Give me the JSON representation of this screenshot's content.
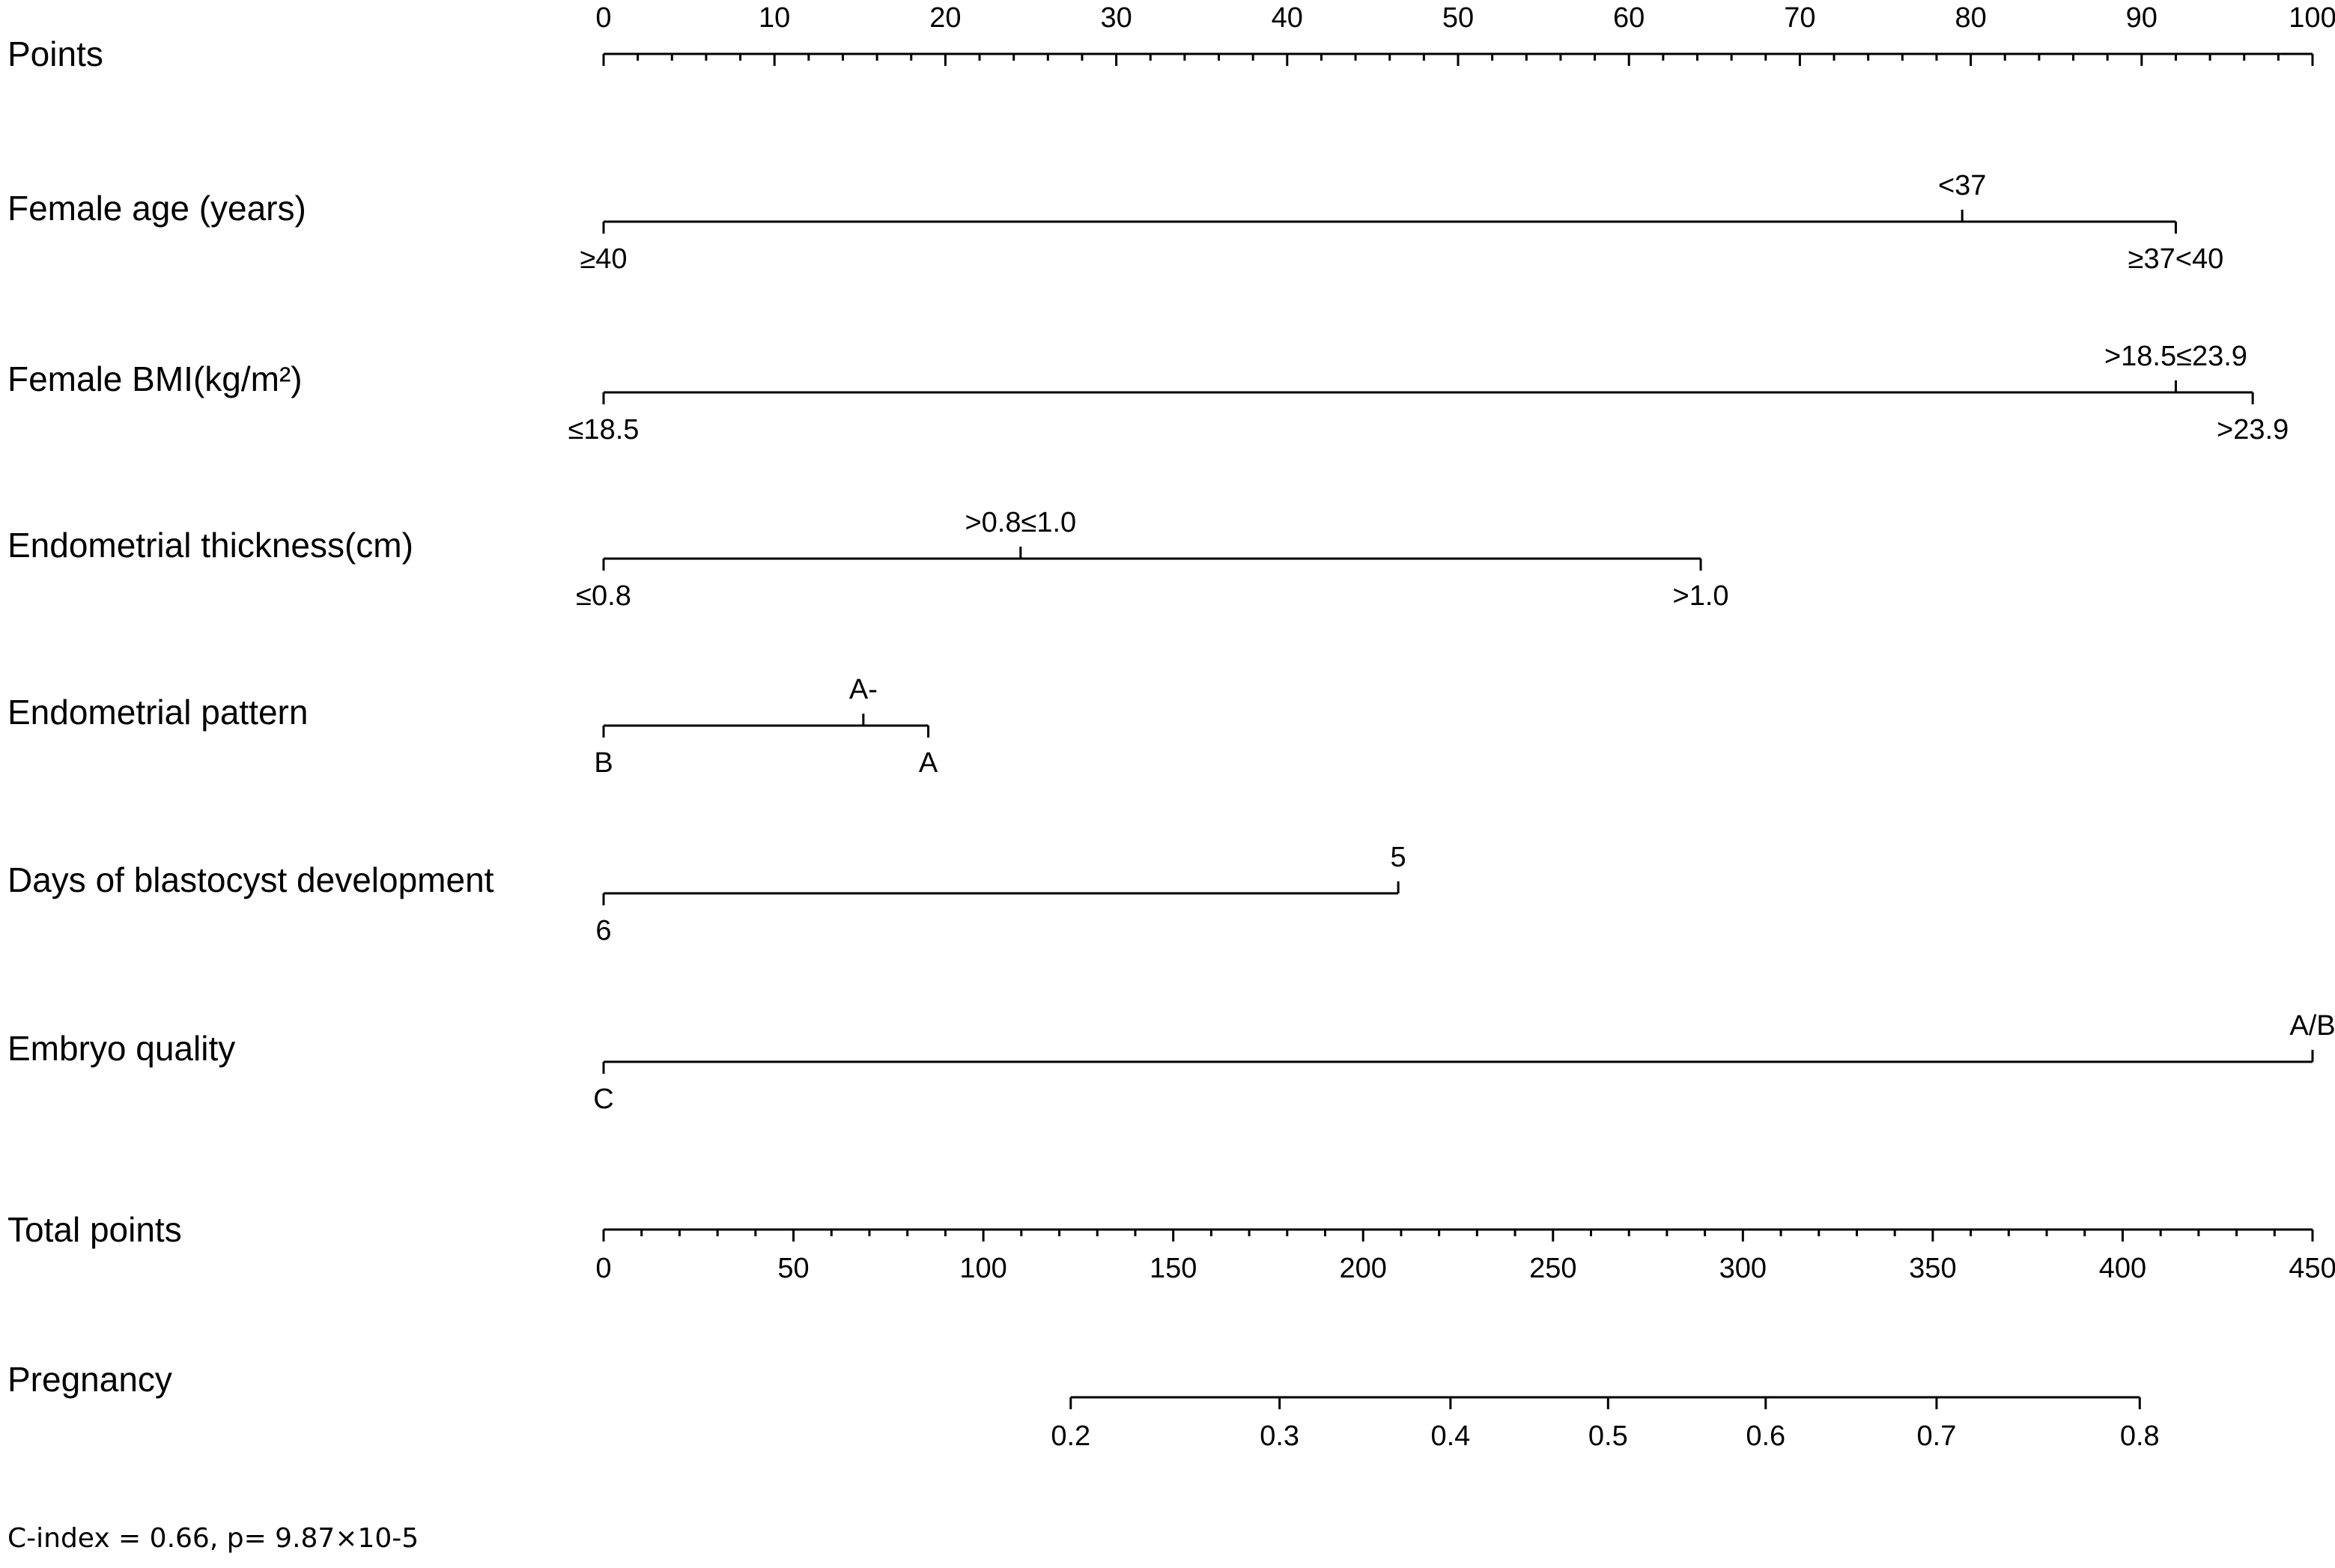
{
  "chart_data": {
    "type": "nomogram",
    "points_scale": {
      "label": "Points",
      "min": 0,
      "max": 100,
      "major_ticks": [
        0,
        10,
        20,
        30,
        40,
        50,
        60,
        70,
        80,
        90,
        100
      ],
      "minor_step": 2
    },
    "variables": [
      {
        "label": "Female age (years)",
        "levels": [
          {
            "label": "≥40",
            "points": 0,
            "side": "below"
          },
          {
            "label": "<37",
            "points": 79.5,
            "side": "above"
          },
          {
            "label": "≥37<40",
            "points": 92,
            "side": "below"
          }
        ]
      },
      {
        "label": "Female BMI(kg/m²)",
        "levels": [
          {
            "label": "≤18.5",
            "points": 0,
            "side": "below"
          },
          {
            "label": ">18.5≤23.9",
            "points": 92,
            "side": "above"
          },
          {
            "label": ">23.9",
            "points": 96.5,
            "side": "below"
          }
        ]
      },
      {
        "label": "Endometrial thickness(cm)",
        "levels": [
          {
            "label": "≤0.8",
            "points": 0,
            "side": "below"
          },
          {
            "label": ">0.8≤1.0",
            "points": 24.4,
            "side": "above"
          },
          {
            "label": ">1.0",
            "points": 64.2,
            "side": "below"
          }
        ]
      },
      {
        "label": "Endometrial pattern",
        "levels": [
          {
            "label": "B",
            "points": 0,
            "side": "below"
          },
          {
            "label": "A-",
            "points": 15.2,
            "side": "above"
          },
          {
            "label": "A",
            "points": 19,
            "side": "below"
          }
        ]
      },
      {
        "label": "Days of blastocyst development",
        "levels": [
          {
            "label": "6",
            "points": 0,
            "side": "below"
          },
          {
            "label": "5",
            "points": 46.5,
            "side": "above"
          }
        ]
      },
      {
        "label": "Embryo quality",
        "levels": [
          {
            "label": "C",
            "points": 0,
            "side": "below"
          },
          {
            "label": "A/B",
            "points": 100,
            "side": "above"
          }
        ]
      }
    ],
    "total_points": {
      "label": "Total points",
      "min": 0,
      "max": 450,
      "major_ticks": [
        0,
        50,
        100,
        150,
        200,
        250,
        300,
        350,
        400,
        450
      ],
      "minor_step": 10
    },
    "outcome": {
      "label": "Pregnancy",
      "ticks": [
        {
          "label": "0.2",
          "total_points": 123
        },
        {
          "label": "0.3",
          "total_points": 178
        },
        {
          "label": "0.4",
          "total_points": 223
        },
        {
          "label": "0.5",
          "total_points": 264.5
        },
        {
          "label": "0.6",
          "total_points": 306
        },
        {
          "label": "0.7",
          "total_points": 351
        },
        {
          "label": "0.8",
          "total_points": 404.5
        }
      ]
    },
    "annotation": "C-index = 0.66, p= 9.87×10-5"
  }
}
